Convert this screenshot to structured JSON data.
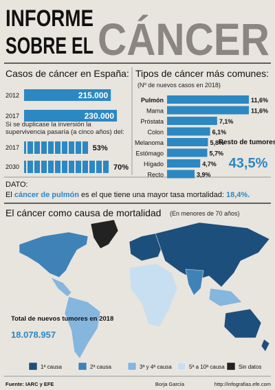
{
  "header": {
    "line1": "INFORME",
    "line2": "SOBRE EL",
    "big": "CÁNCER"
  },
  "chart_data": [
    {
      "type": "bar",
      "title": "Casos de cáncer en España:",
      "categories": [
        "2012",
        "2017"
      ],
      "values": [
        215000,
        230000
      ],
      "value_labels": [
        "215.000",
        "230.000"
      ],
      "color": "#2b88c2"
    },
    {
      "type": "segmented-bar",
      "title": "Si se duplicase la inversión la supervivencia pasaría (a cinco años) del:",
      "categories": [
        "2017",
        "2030"
      ],
      "values": [
        53,
        70
      ],
      "value_labels": [
        "53%",
        "70%"
      ],
      "color": "#2b88c2"
    },
    {
      "type": "bar",
      "title": "Tipos de cáncer más comunes:",
      "subtitle": "(Nº de nuevos casos en 2018)",
      "categories": [
        "Pulmón",
        "Mama",
        "Próstata",
        "Colon",
        "Melanoma",
        "Estómago",
        "Hígado",
        "Recto"
      ],
      "values": [
        11.6,
        11.6,
        7.1,
        6.1,
        5.8,
        5.7,
        4.7,
        3.9
      ],
      "value_labels": [
        "11,6%",
        "11,6%",
        "7,1%",
        "6,1%",
        "5,8%",
        "5,7%",
        "4,7%",
        "3,9%"
      ],
      "color": "#2b88c2",
      "annotation": {
        "label": "Resto de tumores",
        "value_label": "43,5%"
      }
    }
  ],
  "note": {
    "title": "DATO:",
    "parts": [
      "El",
      "cáncer de pulmón",
      "es el que tiene una mayor tasa mortalidad:",
      "18,4%."
    ]
  },
  "map": {
    "title": "El cáncer como causa de mortalidad",
    "subtitle": "(En menores de 70 años)",
    "total_label": "Total de nuevos tumores en 2018",
    "total": "18.078.957",
    "legend": [
      {
        "label": "1ª causa",
        "color": "#1d4f7c"
      },
      {
        "label": "2ª causa",
        "color": "#3f82b8"
      },
      {
        "label": "3ª y 4ª causa",
        "color": "#84b6de"
      },
      {
        "label": "5ª a 10ª causa",
        "color": "#c8dff1"
      },
      {
        "label": "Sin datos",
        "color": "#222222"
      }
    ]
  },
  "footer": {
    "source": "Fuente: IARC y EFE",
    "author": "Borja García",
    "url": "http://infografias.efe.com"
  }
}
